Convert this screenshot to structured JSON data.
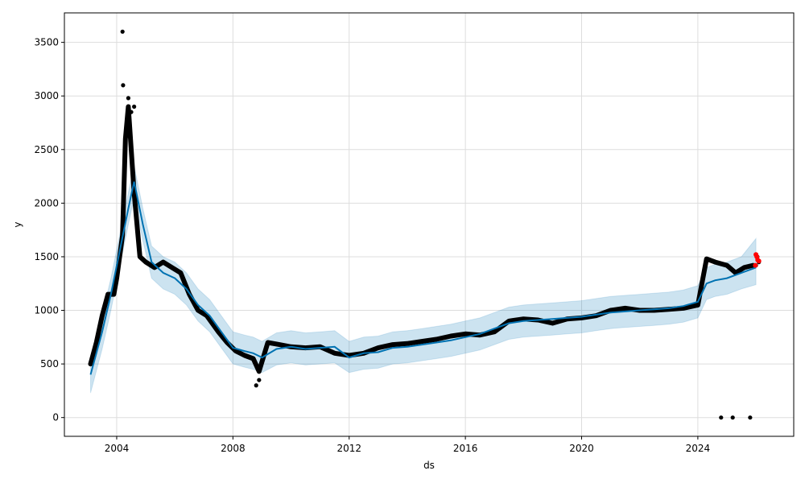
{
  "chart_data": {
    "type": "scatter",
    "title": "",
    "xlabel": "ds",
    "ylabel": "y",
    "xlim": [
      2002.2,
      2027.3
    ],
    "ylim": [
      -175,
      3775
    ],
    "grid": true,
    "x_ticks": [
      2004,
      2008,
      2012,
      2016,
      2020,
      2024
    ],
    "y_ticks": [
      0,
      500,
      1000,
      1500,
      2000,
      2500,
      3000,
      3500
    ],
    "colors": {
      "observed": "#000000",
      "forecast_line": "#0072B2",
      "uncertainty_band": "#0072B2",
      "recent_points": "#ff0000",
      "grid": "#dddddd"
    },
    "forecast": {
      "x": [
        2003.1,
        2003.5,
        2003.8,
        2004.1,
        2004.4,
        2004.6,
        2004.9,
        2005.2,
        2005.6,
        2006.0,
        2006.4,
        2006.8,
        2007.2,
        2007.6,
        2008.0,
        2008.4,
        2008.7,
        2009.0,
        2009.5,
        2010.0,
        2010.5,
        2011.0,
        2011.5,
        2012.0,
        2012.5,
        2013.0,
        2013.5,
        2014.0,
        2014.5,
        2015.0,
        2015.5,
        2016.0,
        2016.5,
        2017.0,
        2017.5,
        2018.0,
        2018.5,
        2019.0,
        2019.5,
        2020.0,
        2020.5,
        2021.0,
        2021.5,
        2022.0,
        2022.5,
        2023.0,
        2023.5,
        2024.0,
        2024.3,
        2024.6,
        2025.0,
        2025.5,
        2026.0
      ],
      "yhat": [
        400,
        800,
        1150,
        1550,
        1950,
        2200,
        1800,
        1450,
        1350,
        1300,
        1200,
        1050,
        950,
        800,
        650,
        620,
        600,
        560,
        640,
        660,
        640,
        650,
        660,
        560,
        600,
        610,
        650,
        660,
        680,
        700,
        720,
        750,
        780,
        830,
        880,
        900,
        910,
        920,
        930,
        940,
        960,
        980,
        990,
        1000,
        1010,
        1020,
        1040,
        1080,
        1250,
        1280,
        1300,
        1350,
        1400
      ],
      "lower": [
        230,
        640,
        1000,
        1400,
        1800,
        2050,
        1650,
        1300,
        1200,
        1150,
        1050,
        900,
        800,
        650,
        500,
        470,
        450,
        420,
        490,
        510,
        490,
        500,
        510,
        420,
        450,
        460,
        500,
        510,
        530,
        550,
        570,
        600,
        630,
        680,
        730,
        750,
        760,
        770,
        780,
        790,
        810,
        830,
        840,
        850,
        860,
        870,
        890,
        930,
        1100,
        1130,
        1150,
        1200,
        1240
      ],
      "upper": [
        560,
        960,
        1300,
        1700,
        2100,
        2350,
        1950,
        1600,
        1500,
        1450,
        1350,
        1200,
        1100,
        950,
        800,
        770,
        750,
        710,
        790,
        810,
        790,
        800,
        810,
        710,
        750,
        760,
        800,
        810,
        830,
        850,
        870,
        900,
        930,
        980,
        1030,
        1050,
        1060,
        1070,
        1080,
        1090,
        1110,
        1130,
        1140,
        1150,
        1160,
        1170,
        1190,
        1230,
        1400,
        1430,
        1450,
        1500,
        1670
      ]
    },
    "observed_trace": {
      "x": [
        2003.1,
        2003.3,
        2003.5,
        2003.7,
        2003.9,
        2004.0,
        2004.2,
        2004.3,
        2004.4,
        2004.5,
        2004.6,
        2004.7,
        2004.8,
        2005.0,
        2005.3,
        2005.6,
        2005.9,
        2006.2,
        2006.5,
        2006.8,
        2007.1,
        2007.5,
        2007.8,
        2008.1,
        2008.4,
        2008.7,
        2008.9,
        2009.2,
        2009.6,
        2010.0,
        2010.5,
        2011.0,
        2011.5,
        2012.0,
        2012.5,
        2013.0,
        2013.5,
        2014.0,
        2014.5,
        2015.0,
        2015.5,
        2016.0,
        2016.5,
        2017.0,
        2017.5,
        2018.0,
        2018.5,
        2019.0,
        2019.5,
        2020.0,
        2020.5,
        2021.0,
        2021.5,
        2022.0,
        2022.5,
        2023.0,
        2023.5,
        2024.0,
        2024.3,
        2024.6,
        2025.0,
        2025.3,
        2025.6,
        2025.9
      ],
      "y": [
        500,
        700,
        950,
        1150,
        1150,
        1300,
        1700,
        2600,
        2900,
        2500,
        2100,
        1800,
        1500,
        1450,
        1400,
        1450,
        1400,
        1350,
        1150,
        1000,
        950,
        800,
        700,
        620,
        580,
        550,
        430,
        700,
        680,
        660,
        650,
        660,
        600,
        580,
        600,
        650,
        680,
        690,
        710,
        730,
        760,
        780,
        770,
        800,
        900,
        920,
        910,
        880,
        920,
        930,
        950,
        1000,
        1020,
        1000,
        1000,
        1010,
        1020,
        1050,
        1480,
        1450,
        1420,
        1350,
        1400,
        1420
      ]
    },
    "notable_points": {
      "x": [
        2004.2,
        2004.22,
        2004.4,
        2004.5,
        2004.6,
        2008.8,
        2008.9,
        2024.8,
        2025.2,
        2025.8,
        2026.0,
        2026.05,
        2026.1
      ],
      "y": [
        3600,
        3100,
        2980,
        2850,
        2900,
        300,
        350,
        0,
        0,
        0,
        1420,
        1500,
        1450
      ]
    },
    "recent_points": {
      "x": [
        2025.98,
        2026.0,
        2026.03,
        2026.06,
        2026.1
      ],
      "y": [
        1420,
        1520,
        1500,
        1470,
        1460
      ]
    }
  }
}
